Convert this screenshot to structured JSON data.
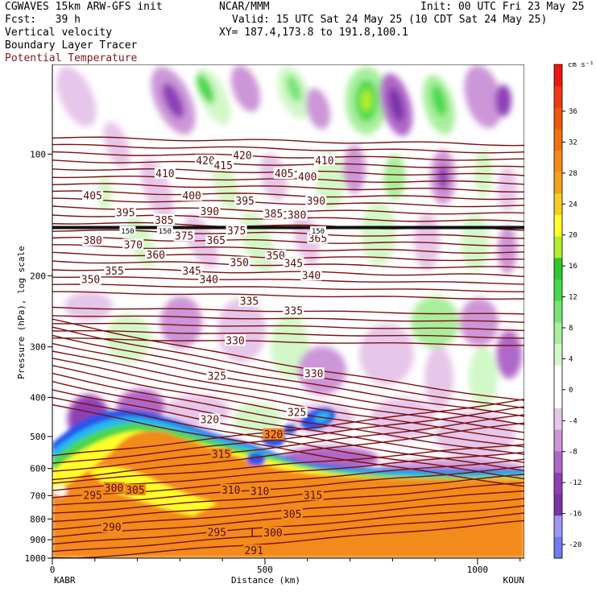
{
  "header": {
    "model": "CGWAVES 15km ARW-GFS init",
    "org": "NCAR/MMM",
    "init": "Init: 00 UTC Fri 23 May 25",
    "fcst_label": "Fcst:",
    "fcst_value": "39 h",
    "valid": "Valid: 15 UTC Sat 24 May 25 (10 CDT Sat 24 May 25)",
    "field1": "Vertical velocity",
    "xy": "XY= 187.4,173.8 to 191.8,100.1",
    "field2": "Boundary Layer Tracer",
    "field3": "Potential Temperature"
  },
  "chart_data": {
    "type": "cross-section",
    "xlabel": "Distance (km)",
    "ylabel": "Pressure (hPa), log scale",
    "x_ticks": [
      0,
      500,
      1000
    ],
    "xlim": [
      0,
      1110
    ],
    "y_ticks": [
      100,
      200,
      300,
      400,
      500,
      600,
      700,
      800,
      900,
      1000
    ],
    "ylim": [
      1000,
      60
    ],
    "y_scale": "log",
    "left_endpoint": "KABR",
    "right_endpoint": "KOUN",
    "colorbar": {
      "units": "cm s⁻¹",
      "tick_labels": [
        36,
        32,
        28,
        24,
        20,
        16,
        12,
        8,
        4,
        0,
        -4,
        -8,
        -12,
        -16,
        -20
      ],
      "colors": [
        "#6f7bf0",
        "#9f96f5",
        "#7a33a8",
        "#8e3fb8",
        "#b068c8",
        "#cc96d8",
        "#e6c6ea",
        "#ffffff",
        "#ffffff",
        "#d2f8c8",
        "#a8ef9c",
        "#78e474",
        "#48d848",
        "#2ec82a",
        "#b2ee2a",
        "#ffff2a",
        "#f8cc28",
        "#f4a21e",
        "#f28a1c",
        "#f07014",
        "#ec580e",
        "#ee3a12",
        "#ec1610"
      ]
    },
    "theta_labels": [
      {
        "v": "410",
        "x": 265,
        "p": 112
      },
      {
        "v": "420",
        "x": 360,
        "p": 104
      },
      {
        "v": "415",
        "x": 402,
        "p": 107
      },
      {
        "v": "420",
        "x": 447,
        "p": 101
      },
      {
        "v": "405",
        "x": 545,
        "p": 112
      },
      {
        "v": "400",
        "x": 600,
        "p": 114
      },
      {
        "v": "410",
        "x": 640,
        "p": 104
      },
      {
        "v": "405",
        "x": 95,
        "p": 127
      },
      {
        "v": "395",
        "x": 172,
        "p": 140
      },
      {
        "v": "400",
        "x": 328,
        "p": 127
      },
      {
        "v": "395",
        "x": 453,
        "p": 131
      },
      {
        "v": "390",
        "x": 620,
        "p": 131
      },
      {
        "v": "385",
        "x": 263,
        "p": 146
      },
      {
        "v": "390",
        "x": 370,
        "p": 139
      },
      {
        "v": "385",
        "x": 520,
        "p": 141
      },
      {
        "v": "380",
        "x": 575,
        "p": 142
      },
      {
        "v": "380",
        "x": 95,
        "p": 164
      },
      {
        "v": "370",
        "x": 190,
        "p": 168
      },
      {
        "v": "375",
        "x": 310,
        "p": 160
      },
      {
        "v": "375",
        "x": 433,
        "p": 155
      },
      {
        "v": "365",
        "x": 385,
        "p": 164
      },
      {
        "v": "365",
        "x": 624,
        "p": 162
      },
      {
        "v": "360",
        "x": 243,
        "p": 178
      },
      {
        "v": "350",
        "x": 525,
        "p": 179
      },
      {
        "v": "350",
        "x": 440,
        "p": 186
      },
      {
        "v": "345",
        "x": 567,
        "p": 187
      },
      {
        "v": "345",
        "x": 328,
        "p": 195
      },
      {
        "v": "355",
        "x": 146,
        "p": 195
      },
      {
        "v": "340",
        "x": 368,
        "p": 205
      },
      {
        "v": "340",
        "x": 609,
        "p": 200
      },
      {
        "v": "350",
        "x": 90,
        "p": 205
      },
      {
        "v": "335",
        "x": 463,
        "p": 232
      },
      {
        "v": "335",
        "x": 567,
        "p": 245
      },
      {
        "v": "330",
        "x": 430,
        "p": 290
      },
      {
        "v": "330",
        "x": 615,
        "p": 350
      },
      {
        "v": "325",
        "x": 387,
        "p": 355
      },
      {
        "v": "325",
        "x": 575,
        "p": 437
      },
      {
        "v": "320",
        "x": 370,
        "p": 455
      },
      {
        "v": "320",
        "x": 520,
        "p": 495
      },
      {
        "v": "315",
        "x": 397,
        "p": 555
      },
      {
        "v": "315",
        "x": 613,
        "p": 700
      },
      {
        "v": "310",
        "x": 420,
        "p": 680
      },
      {
        "v": "310",
        "x": 488,
        "p": 685
      },
      {
        "v": "305",
        "x": 195,
        "p": 680
      },
      {
        "v": "305",
        "x": 564,
        "p": 780
      },
      {
        "v": "300",
        "x": 145,
        "p": 672
      },
      {
        "v": "300",
        "x": 519,
        "p": 867
      },
      {
        "v": "295",
        "x": 95,
        "p": 700
      },
      {
        "v": "295",
        "x": 387,
        "p": 865
      },
      {
        "v": "290",
        "x": 140,
        "p": 840
      },
      {
        "v": "291",
        "x": 474,
        "p": 960
      }
    ],
    "tropopause_labels": [
      {
        "v": "150",
        "x": 177,
        "p": 155
      },
      {
        "v": "150",
        "x": 265,
        "p": 155
      },
      {
        "v": "150",
        "x": 625,
        "p": 155
      }
    ],
    "low_marker": {
      "v": "L",
      "x": 474,
      "p": 865
    }
  }
}
